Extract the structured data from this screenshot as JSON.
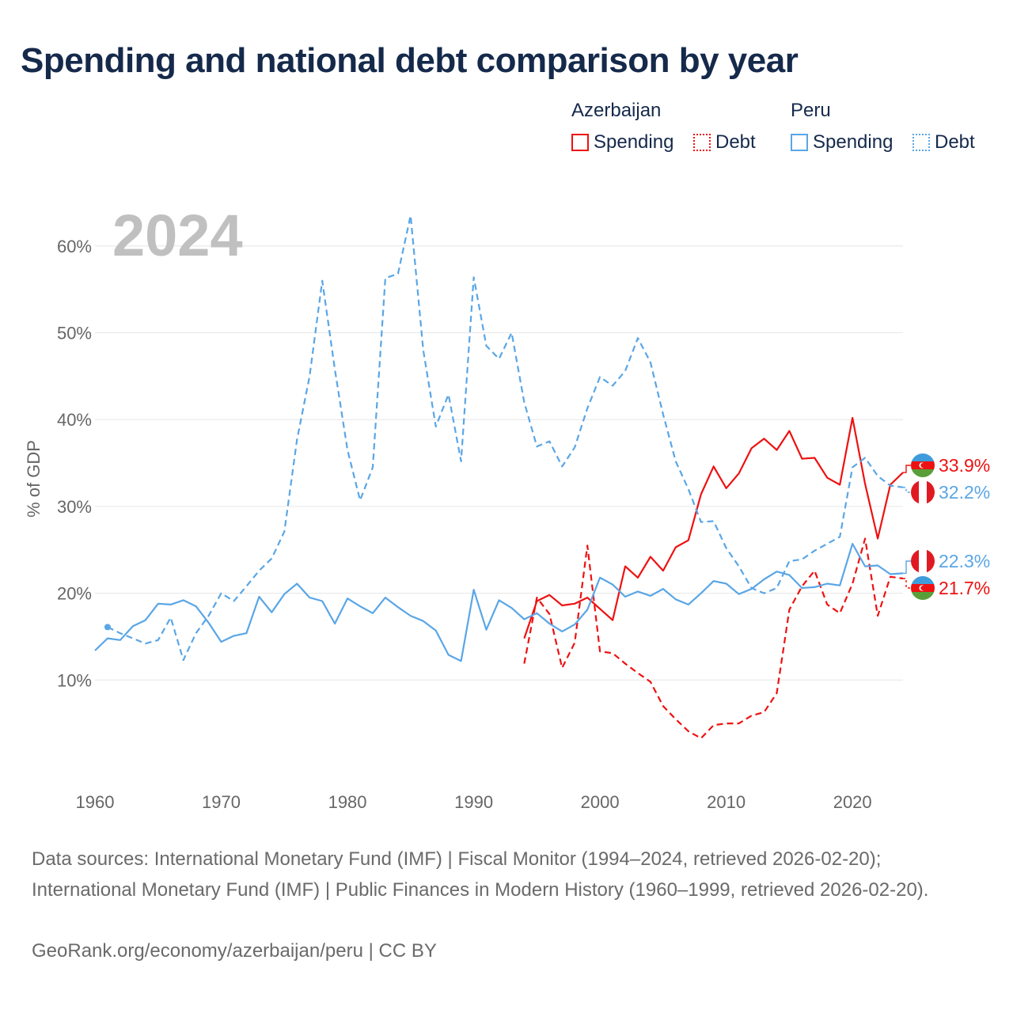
{
  "title": "Spending and national debt comparison by year",
  "legend": {
    "groups": [
      {
        "name": "Azerbaijan",
        "spending_label": "Spending",
        "debt_label": "Debt"
      },
      {
        "name": "Peru",
        "spending_label": "Spending",
        "debt_label": "Debt"
      }
    ]
  },
  "colors": {
    "azerbaijan": "#ee1111",
    "peru": "#5aa6e6",
    "title": "#15294b",
    "axis_text": "#666666",
    "year_watermark": "#c0c0c0"
  },
  "chart_data": {
    "type": "line",
    "year_watermark": "2024",
    "ylabel": "% of GDP",
    "xlim": [
      1960,
      2024
    ],
    "ylim": [
      0,
      63
    ],
    "xticks": [
      1960,
      1970,
      1980,
      1990,
      2000,
      2010,
      2020
    ],
    "xtick_labels": [
      "1960",
      "1970",
      "1980",
      "1990",
      "2000",
      "2010",
      "2020"
    ],
    "yticks": [
      10,
      20,
      30,
      40,
      50,
      60
    ],
    "ytick_labels": [
      "10%",
      "20%",
      "30%",
      "40%",
      "50%",
      "60%"
    ],
    "series": [
      {
        "name": "Azerbaijan Spending",
        "country": "Azerbaijan",
        "style": "solid",
        "years": [
          1994,
          1995,
          1996,
          1997,
          1998,
          1999,
          2000,
          2001,
          2002,
          2003,
          2004,
          2005,
          2006,
          2007,
          2008,
          2009,
          2010,
          2011,
          2012,
          2013,
          2014,
          2015,
          2016,
          2017,
          2018,
          2019,
          2020,
          2021,
          2022,
          2023,
          2024
        ],
        "values": [
          14.8,
          19.1,
          19.8,
          18.6,
          18.8,
          19.5,
          18.2,
          16.9,
          23.1,
          21.8,
          24.2,
          22.6,
          25.3,
          26.1,
          31.4,
          34.6,
          32.1,
          33.8,
          36.7,
          37.8,
          36.5,
          38.7,
          35.5,
          35.6,
          33.3,
          32.5,
          40.2,
          32.6,
          26.3,
          32.5,
          33.9
        ],
        "end_label": "33.9%"
      },
      {
        "name": "Azerbaijan Debt",
        "country": "Azerbaijan",
        "style": "dashed",
        "years": [
          1994,
          1995,
          1996,
          1997,
          1998,
          1999,
          2000,
          2001,
          2002,
          2003,
          2004,
          2005,
          2006,
          2007,
          2008,
          2009,
          2010,
          2011,
          2012,
          2013,
          2014,
          2015,
          2016,
          2017,
          2018,
          2019,
          2020,
          2021,
          2022,
          2023,
          2024
        ],
        "values": [
          11.9,
          19.5,
          17.6,
          11.4,
          14.3,
          25.5,
          13.3,
          13.1,
          11.9,
          10.8,
          9.8,
          7.0,
          5.5,
          4.1,
          3.3,
          4.8,
          5.0,
          5.0,
          5.9,
          6.3,
          8.5,
          18.1,
          20.8,
          22.6,
          18.7,
          17.7,
          21.1,
          26.3,
          17.4,
          21.9,
          21.7
        ],
        "end_label": "21.7%"
      },
      {
        "name": "Peru Spending",
        "country": "Peru",
        "style": "solid",
        "years": [
          1960,
          1961,
          1962,
          1963,
          1964,
          1965,
          1966,
          1967,
          1968,
          1969,
          1970,
          1971,
          1972,
          1973,
          1974,
          1975,
          1976,
          1977,
          1978,
          1979,
          1980,
          1981,
          1982,
          1983,
          1984,
          1985,
          1986,
          1987,
          1988,
          1989,
          1990,
          1991,
          1992,
          1993,
          1994,
          1995,
          1996,
          1997,
          1998,
          1999,
          2000,
          2001,
          2002,
          2003,
          2004,
          2005,
          2006,
          2007,
          2008,
          2009,
          2010,
          2011,
          2012,
          2013,
          2014,
          2015,
          2016,
          2017,
          2018,
          2019,
          2020,
          2021,
          2022,
          2023,
          2024
        ],
        "values": [
          13.4,
          14.8,
          14.6,
          16.2,
          16.9,
          18.8,
          18.7,
          19.2,
          18.5,
          16.6,
          14.4,
          15.1,
          15.4,
          19.6,
          17.8,
          19.9,
          21.1,
          19.5,
          19.1,
          16.5,
          19.4,
          18.5,
          17.7,
          19.5,
          18.4,
          17.4,
          16.8,
          15.7,
          12.9,
          12.2,
          20.4,
          15.8,
          19.2,
          18.3,
          17.0,
          17.7,
          16.5,
          15.6,
          16.4,
          18.1,
          21.8,
          21.0,
          19.6,
          20.2,
          19.7,
          20.5,
          19.3,
          18.7,
          20.0,
          21.4,
          21.1,
          19.9,
          20.5,
          21.6,
          22.5,
          22.1,
          20.6,
          20.7,
          21.1,
          20.9,
          25.7,
          23.1,
          23.2,
          22.2,
          22.3
        ],
        "end_label": "22.3%"
      },
      {
        "name": "Peru Debt",
        "country": "Peru",
        "style": "dashed",
        "years": [
          1961,
          1962,
          1963,
          1964,
          1965,
          1966,
          1967,
          1968,
          1969,
          1970,
          1971,
          1972,
          1973,
          1974,
          1975,
          1976,
          1977,
          1978,
          1979,
          1980,
          1981,
          1982,
          1983,
          1984,
          1985,
          1986,
          1987,
          1988,
          1989,
          1990,
          1991,
          1992,
          1993,
          1994,
          1995,
          1996,
          1997,
          1998,
          1999,
          2000,
          2001,
          2002,
          2003,
          2004,
          2005,
          2006,
          2007,
          2008,
          2009,
          2010,
          2011,
          2012,
          2013,
          2014,
          2015,
          2016,
          2017,
          2018,
          2019,
          2020,
          2021,
          2022,
          2023,
          2024
        ],
        "values": [
          16.1,
          15.4,
          14.8,
          14.2,
          14.6,
          17.2,
          12.3,
          15.4,
          17.4,
          20.0,
          19.1,
          20.8,
          22.6,
          24.0,
          27.1,
          37.7,
          45.0,
          56.0,
          45.8,
          36.5,
          30.7,
          34.5,
          56.3,
          56.8,
          63.5,
          48.0,
          39.2,
          42.9,
          35.2,
          56.4,
          48.5,
          47.0,
          50.0,
          42.0,
          36.9,
          37.5,
          34.6,
          36.8,
          41.3,
          44.9,
          43.9,
          45.6,
          49.4,
          46.6,
          40.6,
          35.2,
          32.0,
          28.2,
          28.3,
          25.2,
          23.1,
          20.6,
          20.0,
          20.6,
          23.7,
          23.9,
          24.9,
          25.7,
          26.5,
          34.5,
          35.6,
          33.5,
          32.4,
          32.2
        ],
        "end_label": "32.2%"
      }
    ]
  },
  "footer": {
    "sources": "Data sources: International Monetary Fund (IMF) | Fiscal Monitor (1994–2024, retrieved 2026-02-20); International Monetary Fund (IMF) | Public Finances in Modern History (1960–1999, retrieved 2026-02-20).",
    "credit": "GeoRank.org/economy/azerbaijan/peru | CC BY"
  }
}
